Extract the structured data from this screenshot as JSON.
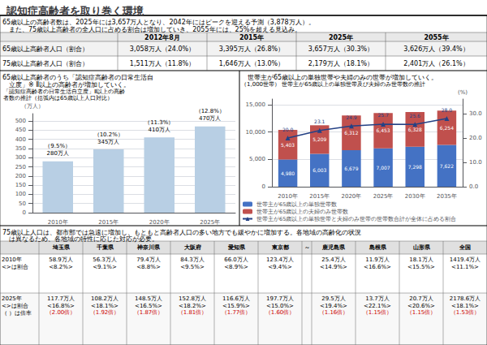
{
  "chart_data": [
    {
      "type": "table",
      "title": "認知症高齢者を取り巻く環境",
      "annotations": [
        "65歳以上の高齢者数は、2025年には3,657万人となり、2042年にはピークを迎える予測（3,878万人）。",
        "　また、75歳以上高齢者の全人口に占める割合は増加していき、2055年には、25%を超える見込み。"
      ],
      "columns": [
        null,
        "2012年8月",
        "2015年",
        "2025年",
        "2055年"
      ],
      "rows": [
        [
          "65歳以上高齢者人口（割合）",
          "3,058万人（24.0%）",
          "3,395万人（26.8%）",
          "3,657万人（30.3%）",
          "3,626万人（39.4%）"
        ],
        [
          "75歳以上高齢者人口（割合）",
          "1,511万人（11.8%）",
          "1,646万人（13.0%）",
          "2,179万人（18.1%）",
          "2,401万人（26.1%）"
        ]
      ]
    },
    {
      "type": "bar",
      "annotations": [
        "65歳以上高齢者のうち「認知症高齢者の日常生活自",
        "　立度」※ Ⅱ以上の高齢者が増加していく。"
      ],
      "subtitle": [
        "「認知症高齢者の日常生活自立度」Ⅱ以上の高齢",
        "者数の推計（括弧内は65歳以上人口対比）"
      ],
      "ylabel": "（万人）",
      "categories": [
        "2010年",
        "2015年",
        "2020年",
        "2025年"
      ],
      "values": [
        280,
        345,
        410,
        470
      ],
      "value_labels": [
        "280万人",
        "345万人",
        "410万人",
        "470万人"
      ],
      "share_labels": [
        "（9.5%）",
        "（10.2%）",
        "（11.3%）",
        "（12.8%）"
      ],
      "color": "#b8cfe4",
      "ylim": [
        0,
        540
      ],
      "yticks": [
        0,
        50,
        100,
        150,
        200,
        250,
        300,
        350,
        400,
        450,
        500
      ],
      "grid": true,
      "data_labels": true
    },
    {
      "type": "bar",
      "stacked": true,
      "annotations": [
        " 世帯主が65歳以上の単独世帯や夫婦のみの世帯が増加していく。"
      ],
      "subtitle": "（1,000世帯） 世帯主が65歳以上の単独世帯及び夫婦のみ世帯数の推計",
      "y2label": "(%)",
      "categories": [
        "2010年",
        "2015年",
        "2020年",
        "2025年",
        "2030年",
        "2035年"
      ],
      "series": [
        {
          "name": "世帯主が65歳以上の単独世帯数",
          "type": "bar",
          "color": "#4472c4",
          "values": [
            4980,
            6003,
            6679,
            7007,
            7298,
            7622
          ],
          "value_labels": [
            "4,980",
            "6,003",
            "6,679",
            "7,007",
            "7,298",
            "7,622"
          ]
        },
        {
          "name": "世帯主が65歳以上の夫婦のみ世帯数",
          "type": "bar",
          "color": "#c0504d",
          "values": [
            5403,
            5209,
            6312,
            6453,
            6328,
            6254
          ],
          "value_labels": [
            "5,403",
            "5,209",
            "6,312",
            "6,453",
            "6,328",
            "6,254"
          ]
        },
        {
          "name": "世帯主が65歳以上の単独世帯と夫婦のみ世帯の世帯数合計が全体に占める割合",
          "type": "line",
          "axis": "y2",
          "color": "#244185",
          "marker": "triangle",
          "values": [
            20.0,
            23.1,
            24.9,
            25.7,
            25.6,
            28.0
          ],
          "value_labels": [
            "20.0",
            "23.1",
            "24.9",
            "25.7",
            "25.6",
            "28.0"
          ]
        }
      ],
      "ylim": [
        0,
        16000
      ],
      "yticks": [
        0,
        {
          "value": 5000,
          "label": "5,000"
        },
        {
          "value": 10000,
          "label": "10,000"
        },
        {
          "value": 15000,
          "label": "15,000"
        }
      ],
      "y2lim": [
        0,
        36
      ],
      "y2ticks": [
        {
          "value": 0,
          "label": "0.0"
        },
        {
          "value": 10,
          "label": "10.0"
        },
        {
          "value": 20,
          "label": "20.0"
        },
        {
          "value": 30,
          "label": "30.0"
        }
      ],
      "grid": true,
      "legend": "lower left",
      "data_labels": true
    },
    {
      "type": "table",
      "annotations": [
        "75歳以上人口は、都市部では急速に増加し、もともと高齢者人口の多い地方でも緩やかに増加する。各地域の高齢化の状況",
        "　は異なるため、各地域の特性に応じた対応が必要。"
      ],
      "columns": [
        null,
        "埼玉県",
        "千葉県",
        "神奈川県",
        "大阪府",
        "愛知県",
        "東京都",
        "～",
        "鹿児島県",
        "島根県",
        "山形県",
        "全国"
      ],
      "rows": [
        {
          "label": [
            "2010年",
            "<>は割合"
          ],
          "cells": [
            "58.9万人\n<8.2%>",
            "56.3万人\n<9.1%>",
            "79.4万人\n<8.8%>",
            "84.3万人\n<9.5%>",
            "66.0万人\n<8.9%>",
            "123.4万人\n<9.4%>",
            null,
            "25.4万人\n<14.9%>",
            "11.9万人\n<16.6%>",
            "18.1万人\n<15.5%>",
            "1419.4万人\n<11.1%>"
          ]
        },
        {
          "label": [
            "2025年",
            "<>は割合",
            "（ ）は倍率"
          ],
          "cells": [
            "117.7万人\n<16.8%>",
            "108.2万人\n<18.1%>",
            "148.5万人\n<16.5%>",
            "152.8万人\n<18.2%>",
            "116.6万人\n<15.9%>",
            "197.7万人\n<15.0%>",
            null,
            "29.5万人\n<19.4%>",
            "13.7万人\n<22.1%>",
            "20.7万人\n<20.6%>",
            "2178.6万人\n<18.1%>"
          ],
          "ratios": [
            "（2.00倍）",
            "（1.92倍）",
            "（1.87倍）",
            "（1.81倍）",
            "（1.77倍）",
            "（1.60倍）",
            null,
            "（1.16倍）",
            "（1.15倍）",
            "（1.15倍）",
            "（1.53倍）"
          ],
          "ratio_color": "#cc0000"
        }
      ]
    }
  ]
}
